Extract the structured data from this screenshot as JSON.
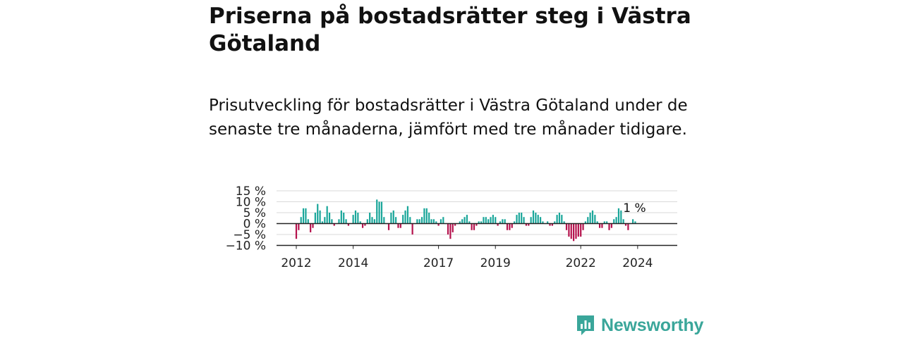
{
  "title": "Priserna på bostadsrätter steg i Västra Götaland",
  "subtitle": "Prisutveckling för bostadsrätter i Västra Götaland under de senaste tre månaderna, jämfört med tre månader tidigare.",
  "brand": {
    "name": "Newsworthy",
    "color": "#3aa69a"
  },
  "colors": {
    "positive": "#1aa69a",
    "negative": "#b5124d",
    "grid": "#d9d9d9",
    "axis": "#222222"
  },
  "chart_data": {
    "type": "bar",
    "xlabel": "",
    "ylabel": "",
    "ylim": [
      -10,
      15
    ],
    "yticks": [
      15,
      10,
      5,
      0,
      -5,
      -10
    ],
    "ytick_labels": [
      "15 %",
      "10 %",
      "5 %",
      "0 %",
      "−5 %",
      "−10 %"
    ],
    "xtick_labels": [
      "2012",
      "2014",
      "2017",
      "2019",
      "2022",
      "2024"
    ],
    "x_start": "2012-01",
    "last_value_label": "1 %",
    "values": [
      -7,
      -3,
      3,
      7,
      7,
      2,
      -4,
      -2,
      5,
      9,
      6,
      1,
      3,
      8,
      5,
      2,
      -1,
      0,
      2,
      6,
      5,
      2,
      -1,
      0,
      4,
      6,
      5,
      1,
      -2,
      -1,
      2,
      5,
      3,
      2,
      11,
      10,
      10,
      3,
      0,
      -3,
      5,
      6,
      3,
      -2,
      -2,
      4,
      6,
      8,
      3,
      -5,
      0,
      2,
      2,
      3,
      7,
      7,
      5,
      2,
      2,
      1,
      -1,
      2,
      3,
      0,
      -5,
      -7,
      -4,
      -1,
      0,
      1,
      2,
      3,
      4,
      1,
      -3,
      -3,
      -1,
      1,
      1,
      3,
      3,
      2,
      3,
      4,
      3,
      -1,
      1,
      2,
      2,
      -3,
      -3,
      -2,
      1,
      4,
      5,
      5,
      3,
      -1,
      -1,
      3,
      6,
      5,
      4,
      3,
      1,
      0,
      1,
      -1,
      -1,
      1,
      4,
      5,
      4,
      1,
      -3,
      -6,
      -7,
      -8,
      -7,
      -6,
      -6,
      -3,
      1,
      3,
      5,
      6,
      4,
      1,
      -2,
      -2,
      1,
      1,
      -3,
      -2,
      2,
      3,
      7,
      6,
      2,
      -1,
      -3,
      0,
      2,
      1
    ]
  }
}
